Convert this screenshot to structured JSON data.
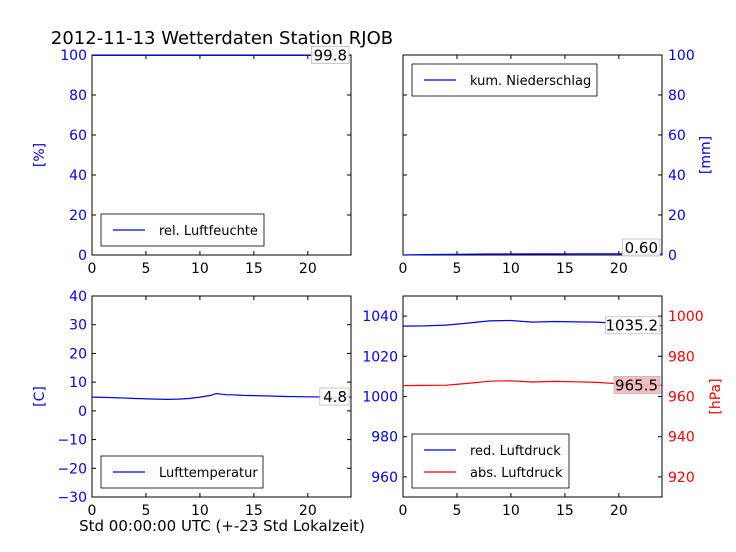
{
  "figure": {
    "title": "2012-11-13 Wetterdaten Station RJOB",
    "xlabel": "Std 00:00:00 UTC (+-23 Std Lokalzeit)"
  },
  "colors": {
    "blue": "#0000ff",
    "red": "#ff0000",
    "label_box_red": "#f4b8b8"
  },
  "chart_data": [
    {
      "type": "line",
      "panel": "top-left",
      "ylabel": "[%]",
      "ylabel_color": "blue",
      "ylim": [
        0,
        100
      ],
      "yticks": [
        0,
        20,
        40,
        60,
        80,
        100
      ],
      "xlim": [
        0,
        24
      ],
      "xticks": [
        0,
        5,
        10,
        15,
        20
      ],
      "grid": false,
      "legend_position": "lower-left",
      "series": [
        {
          "name": "rel. Luftfeuchte",
          "color": "blue",
          "x": [
            0,
            2,
            4,
            6,
            8,
            10,
            12,
            14,
            16,
            18,
            20,
            22,
            24
          ],
          "y": [
            99.8,
            99.8,
            99.8,
            99.8,
            99.8,
            99.8,
            99.8,
            99.8,
            99.8,
            99.8,
            99.8,
            99.8,
            99.8
          ]
        }
      ],
      "value_labels": [
        {
          "text": "99.8",
          "value": 99.8,
          "box": "white"
        }
      ]
    },
    {
      "type": "line",
      "panel": "top-right",
      "ylabel": "[mm]",
      "ylabel_color": "blue",
      "yaxis_side": "right",
      "ylim": [
        0,
        100
      ],
      "yticks": [
        0,
        20,
        40,
        60,
        80,
        100
      ],
      "xlim": [
        0,
        24
      ],
      "xticks": [
        0,
        5,
        10,
        15,
        20
      ],
      "grid": false,
      "legend_position": "upper-left",
      "series": [
        {
          "name": "kum. Niederschlag",
          "color": "blue",
          "x": [
            0,
            2,
            4,
            6,
            8,
            10,
            12,
            14,
            16,
            18,
            20,
            22,
            24
          ],
          "y": [
            0.0,
            0.2,
            0.3,
            0.4,
            0.5,
            0.5,
            0.55,
            0.55,
            0.6,
            0.6,
            0.6,
            0.6,
            0.6
          ]
        }
      ],
      "value_labels": [
        {
          "text": "0.60",
          "value": 0.6,
          "box": "white"
        }
      ]
    },
    {
      "type": "line",
      "panel": "bottom-left",
      "ylabel": "[C]",
      "ylabel_color": "blue",
      "ylim": [
        -30,
        40
      ],
      "yticks": [
        -30,
        -20,
        -10,
        0,
        10,
        20,
        30,
        40
      ],
      "xlim": [
        0,
        24
      ],
      "xticks": [
        0,
        5,
        10,
        15,
        20
      ],
      "grid": false,
      "legend_position": "lower-left",
      "series": [
        {
          "name": "Lufttemperatur",
          "color": "blue",
          "x": [
            0,
            2,
            4,
            6,
            7,
            8,
            9,
            10,
            11,
            11.5,
            12,
            12.5,
            13,
            14,
            15,
            16,
            18,
            20,
            22,
            24
          ],
          "y": [
            4.8,
            4.6,
            4.3,
            4.1,
            4.0,
            4.1,
            4.3,
            4.8,
            5.4,
            6.0,
            5.8,
            5.6,
            5.6,
            5.4,
            5.3,
            5.2,
            5.0,
            4.9,
            4.8,
            4.8
          ]
        }
      ],
      "value_labels": [
        {
          "text": "4.8",
          "value": 4.8,
          "box": "white"
        }
      ]
    },
    {
      "type": "line",
      "panel": "bottom-right",
      "ylabel": "[hPa]",
      "ylabel_color": "red",
      "ylim": [
        950,
        1050
      ],
      "yticks": [
        960,
        980,
        1000,
        1020,
        1040
      ],
      "secondary_ylim": [
        910,
        1010
      ],
      "secondary_yticks": [
        920,
        940,
        960,
        980,
        1000
      ],
      "xlim": [
        0,
        24
      ],
      "xticks": [
        0,
        5,
        10,
        15,
        20
      ],
      "grid": false,
      "legend_position": "lower-left",
      "series": [
        {
          "name": "red. Luftdruck",
          "color": "blue",
          "axis": "left",
          "x": [
            0,
            2,
            4,
            6,
            8,
            10,
            12,
            14,
            16,
            18,
            20,
            22,
            24
          ],
          "y": [
            1035.0,
            1035.1,
            1035.5,
            1036.5,
            1037.6,
            1037.8,
            1037.0,
            1037.3,
            1037.1,
            1037.0,
            1036.2,
            1035.6,
            1035.2
          ]
        },
        {
          "name": "abs. Luftdruck",
          "color": "red",
          "axis": "right",
          "x": [
            0,
            2,
            4,
            6,
            8,
            10,
            12,
            14,
            16,
            18,
            20,
            22,
            24
          ],
          "y": [
            965.4,
            965.5,
            965.6,
            966.5,
            967.6,
            967.8,
            967.2,
            967.5,
            967.3,
            967.0,
            966.3,
            965.8,
            965.5
          ]
        }
      ],
      "value_labels": [
        {
          "text": "1035.2",
          "value": 1035.2,
          "axis": "left",
          "box": "white"
        },
        {
          "text": "965.5",
          "value": 965.5,
          "axis": "right",
          "box": "red"
        }
      ]
    }
  ]
}
